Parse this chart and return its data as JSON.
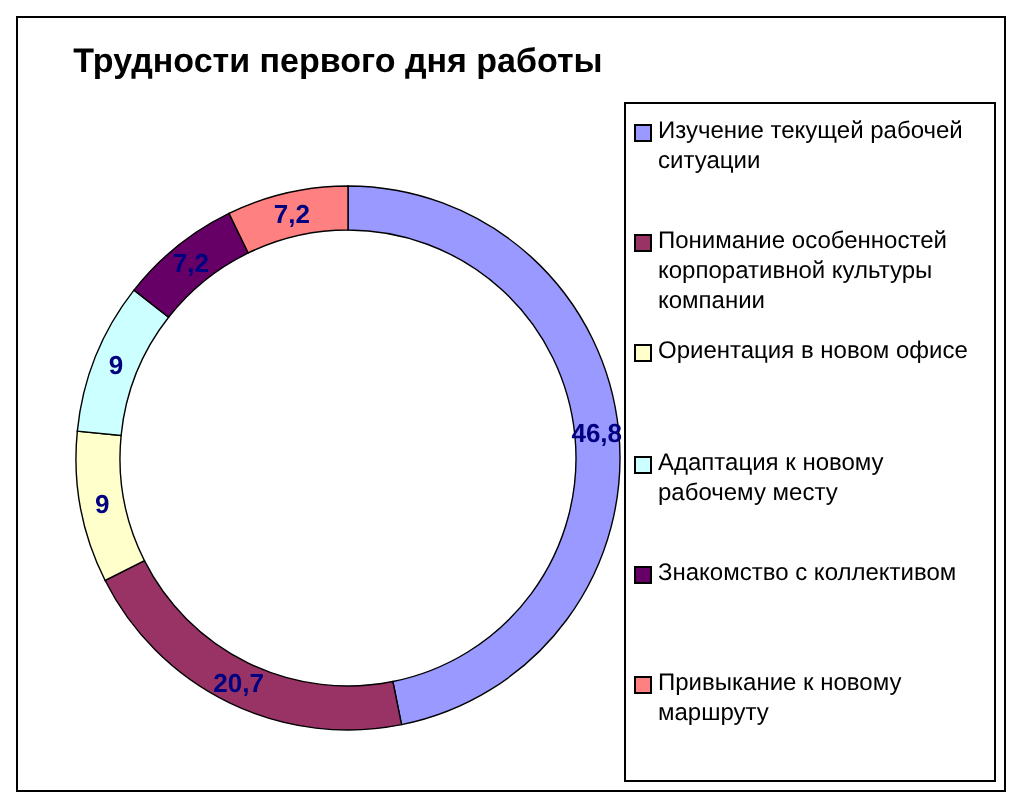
{
  "chart_data": {
    "type": "donut",
    "title": "Трудности первого дня работы",
    "categories": [
      "Изучение текущей рабочей ситуации",
      "Понимание особенностей корпоративной культуры компании",
      "Ориентация в новом офисе",
      "Адаптация к новому рабочему месту",
      "Знакомство с коллективом",
      "Привыкание к новому маршруту"
    ],
    "values": [
      46.8,
      20.7,
      9,
      9,
      7.2,
      7.2
    ],
    "value_labels": [
      "46,8",
      "20,7",
      "9",
      "9",
      "7,2",
      "7,2"
    ],
    "colors": [
      "#9999ff",
      "#993366",
      "#ffffcc",
      "#ccffff",
      "#660066",
      "#ff8080"
    ],
    "legend": "right"
  }
}
